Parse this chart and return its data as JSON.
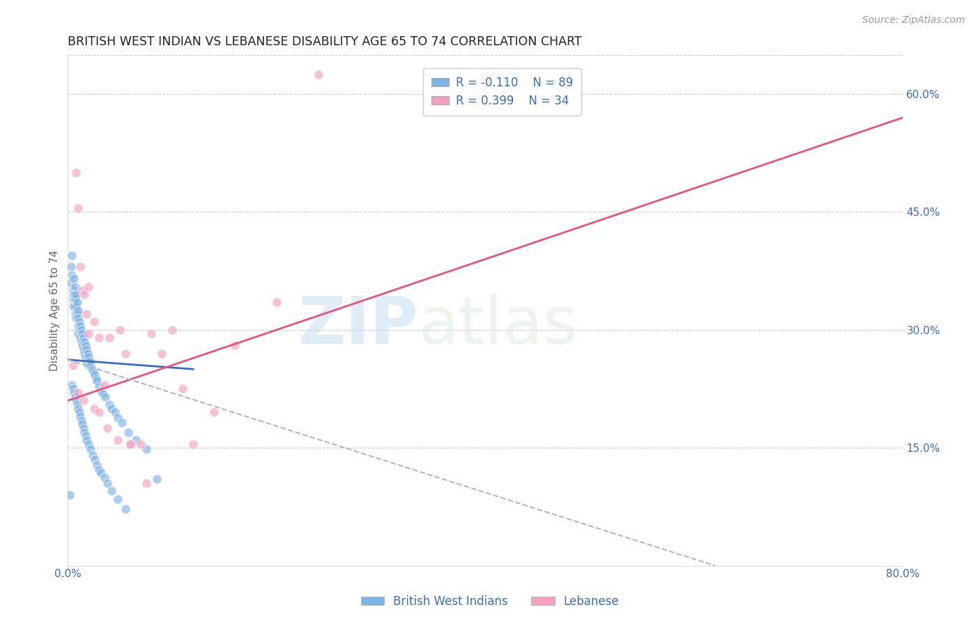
{
  "title": "BRITISH WEST INDIAN VS LEBANESE DISABILITY AGE 65 TO 74 CORRELATION CHART",
  "source": "Source: ZipAtlas.com",
  "ylabel": "Disability Age 65 to 74",
  "xlim": [
    0.0,
    0.8
  ],
  "ylim": [
    0.0,
    0.65
  ],
  "xticks": [
    0.0,
    0.8
  ],
  "xticklabels": [
    "0.0%",
    "80.0%"
  ],
  "yticks_right": [
    0.15,
    0.3,
    0.45,
    0.6
  ],
  "ytick_right_labels": [
    "15.0%",
    "30.0%",
    "45.0%",
    "60.0%"
  ],
  "grid_color": "#cccccc",
  "background_color": "#ffffff",
  "blue_color": "#7eb3e8",
  "pink_color": "#f4a0c0",
  "blue_line_color": "#3a6bc9",
  "pink_line_color": "#e8547a",
  "dashed_line_color": "#b0b8c8",
  "axis_label_color": "#3a6bc9",
  "watermark_zip": "ZIP",
  "watermark_atlas": "atlas",
  "legend_r_blue": "-0.110",
  "legend_n_blue": "89",
  "legend_r_pink": "0.399",
  "legend_n_pink": "34",
  "blue_scatter_x": [
    0.002,
    0.003,
    0.003,
    0.004,
    0.004,
    0.005,
    0.005,
    0.005,
    0.006,
    0.006,
    0.006,
    0.007,
    0.007,
    0.007,
    0.008,
    0.008,
    0.008,
    0.009,
    0.009,
    0.01,
    0.01,
    0.01,
    0.01,
    0.011,
    0.011,
    0.012,
    0.012,
    0.013,
    0.013,
    0.014,
    0.014,
    0.015,
    0.015,
    0.016,
    0.016,
    0.017,
    0.017,
    0.018,
    0.018,
    0.019,
    0.02,
    0.02,
    0.021,
    0.022,
    0.023,
    0.024,
    0.025,
    0.026,
    0.027,
    0.028,
    0.03,
    0.032,
    0.034,
    0.036,
    0.04,
    0.042,
    0.045,
    0.048,
    0.052,
    0.058,
    0.065,
    0.075,
    0.085,
    0.004,
    0.005,
    0.006,
    0.007,
    0.008,
    0.009,
    0.01,
    0.011,
    0.012,
    0.013,
    0.014,
    0.015,
    0.016,
    0.017,
    0.018,
    0.02,
    0.022,
    0.024,
    0.026,
    0.028,
    0.03,
    0.032,
    0.035,
    0.038,
    0.042,
    0.048,
    0.055
  ],
  "blue_scatter_y": [
    0.09,
    0.38,
    0.36,
    0.395,
    0.37,
    0.35,
    0.34,
    0.33,
    0.365,
    0.345,
    0.33,
    0.355,
    0.34,
    0.32,
    0.345,
    0.33,
    0.315,
    0.335,
    0.32,
    0.325,
    0.315,
    0.305,
    0.295,
    0.31,
    0.3,
    0.305,
    0.29,
    0.3,
    0.285,
    0.295,
    0.28,
    0.29,
    0.275,
    0.285,
    0.27,
    0.28,
    0.265,
    0.275,
    0.26,
    0.27,
    0.265,
    0.255,
    0.26,
    0.255,
    0.25,
    0.248,
    0.245,
    0.242,
    0.238,
    0.235,
    0.228,
    0.222,
    0.218,
    0.215,
    0.205,
    0.2,
    0.195,
    0.188,
    0.182,
    0.17,
    0.16,
    0.148,
    0.11,
    0.23,
    0.225,
    0.22,
    0.215,
    0.21,
    0.205,
    0.2,
    0.195,
    0.19,
    0.185,
    0.18,
    0.175,
    0.17,
    0.165,
    0.16,
    0.155,
    0.148,
    0.14,
    0.135,
    0.128,
    0.122,
    0.118,
    0.112,
    0.105,
    0.095,
    0.085,
    0.072
  ],
  "pink_scatter_x": [
    0.005,
    0.008,
    0.01,
    0.012,
    0.014,
    0.016,
    0.018,
    0.02,
    0.025,
    0.03,
    0.035,
    0.04,
    0.05,
    0.055,
    0.06,
    0.07,
    0.08,
    0.09,
    0.1,
    0.11,
    0.12,
    0.14,
    0.16,
    0.2,
    0.24,
    0.01,
    0.015,
    0.02,
    0.025,
    0.03,
    0.038,
    0.048,
    0.06,
    0.075
  ],
  "pink_scatter_y": [
    0.255,
    0.5,
    0.455,
    0.38,
    0.35,
    0.345,
    0.32,
    0.295,
    0.31,
    0.29,
    0.23,
    0.29,
    0.3,
    0.27,
    0.155,
    0.155,
    0.295,
    0.27,
    0.3,
    0.225,
    0.155,
    0.195,
    0.28,
    0.335,
    0.625,
    0.22,
    0.21,
    0.355,
    0.2,
    0.195,
    0.175,
    0.16,
    0.155,
    0.105
  ],
  "blue_line_x": [
    0.0,
    0.12
  ],
  "blue_line_y": [
    0.262,
    0.25
  ],
  "pink_line_x": [
    0.0,
    0.8
  ],
  "pink_line_y": [
    0.21,
    0.57
  ],
  "dashed_line_x": [
    0.0,
    0.62
  ],
  "dashed_line_y": [
    0.262,
    0.0
  ]
}
